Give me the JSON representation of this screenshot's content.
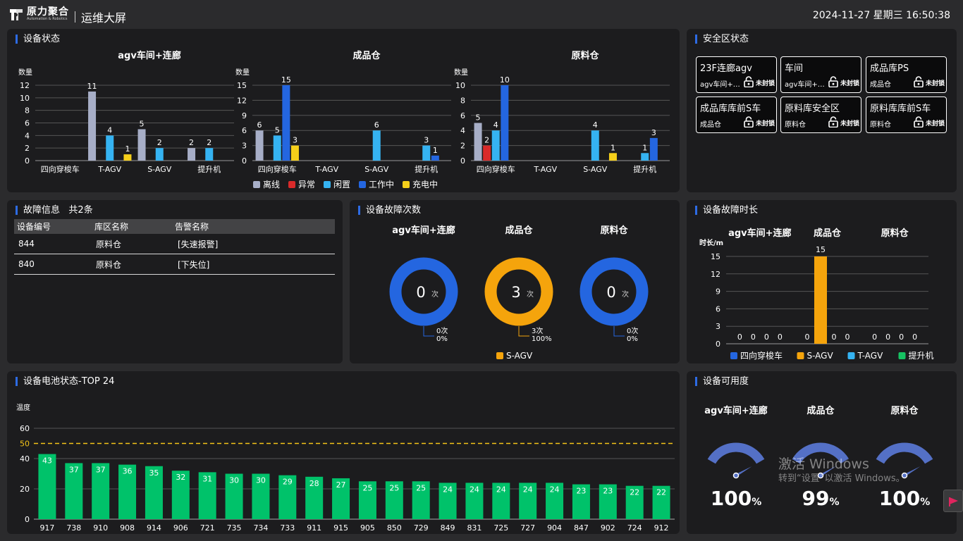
{
  "header": {
    "brand_cn": "原力聚合",
    "brand_en": "Automation & Robotics",
    "title": "运维大屏",
    "datetime": "2024-11-27 星期三 16:50:38"
  },
  "device_status": {
    "title": "设备状态",
    "y_label": "数量",
    "chart_data": [
      {
        "type": "bar",
        "title": "agv车间+连廊",
        "categories": [
          "四向穿梭车",
          "T-AGV",
          "S-AGV",
          "提升机"
        ],
        "ylabel": "数量",
        "ylim": [
          0,
          12
        ],
        "yticks": [
          0,
          2,
          4,
          6,
          8,
          10,
          12
        ],
        "series": [
          {
            "name": "离线",
            "values": [
              null,
              11,
              5,
              2
            ]
          },
          {
            "name": "异常",
            "values": [
              null,
              null,
              null,
              null
            ]
          },
          {
            "name": "闲置",
            "values": [
              null,
              4,
              2,
              2
            ]
          },
          {
            "name": "工作中",
            "values": [
              null,
              null,
              null,
              null
            ]
          },
          {
            "name": "充电中",
            "values": [
              null,
              1,
              null,
              null
            ]
          }
        ]
      },
      {
        "type": "bar",
        "title": "成品仓",
        "categories": [
          "四向穿梭车",
          "T-AGV",
          "S-AGV",
          "提升机"
        ],
        "ylabel": "数量",
        "ylim": [
          0,
          15
        ],
        "yticks": [
          0,
          3,
          6,
          9,
          12,
          15
        ],
        "series": [
          {
            "name": "离线",
            "values": [
              6,
              null,
              null,
              null
            ]
          },
          {
            "name": "异常",
            "values": [
              null,
              null,
              null,
              null
            ]
          },
          {
            "name": "闲置",
            "values": [
              5,
              null,
              6,
              3
            ]
          },
          {
            "name": "工作中",
            "values": [
              15,
              null,
              null,
              1
            ]
          },
          {
            "name": "充电中",
            "values": [
              3,
              null,
              null,
              null
            ]
          }
        ]
      },
      {
        "type": "bar",
        "title": "原料仓",
        "categories": [
          "四向穿梭车",
          "T-AGV",
          "S-AGV",
          "提升机"
        ],
        "ylabel": "数量",
        "ylim": [
          0,
          10
        ],
        "yticks": [
          0,
          2,
          4,
          6,
          8,
          10
        ],
        "series": [
          {
            "name": "离线",
            "values": [
              5,
              null,
              null,
              null
            ]
          },
          {
            "name": "异常",
            "values": [
              2,
              null,
              null,
              null
            ]
          },
          {
            "name": "闲置",
            "values": [
              4,
              null,
              4,
              1
            ]
          },
          {
            "name": "工作中",
            "values": [
              10,
              null,
              null,
              3
            ]
          },
          {
            "name": "充电中",
            "values": [
              null,
              null,
              1,
              null
            ]
          }
        ]
      }
    ],
    "legend": [
      {
        "label": "离线",
        "color": "#a7aec7"
      },
      {
        "label": "异常",
        "color": "#d92a2a"
      },
      {
        "label": "闲置",
        "color": "#35b3f2"
      },
      {
        "label": "工作中",
        "color": "#2466e0"
      },
      {
        "label": "充电中",
        "color": "#f5cf1a"
      }
    ]
  },
  "safety": {
    "title": "安全区状态",
    "zones": [
      {
        "name": "23F连廊agv",
        "area": "agv车间+连廊",
        "status": "未封锁"
      },
      {
        "name": "车间",
        "area": "agv车间+连廊",
        "status": "未封锁"
      },
      {
        "name": "成品库PS",
        "area": "成品仓",
        "status": "未封锁"
      },
      {
        "name": "成品库库前S车",
        "area": "成品仓",
        "status": "未封锁"
      },
      {
        "name": "原料库安全区",
        "area": "原料仓",
        "status": "未封锁"
      },
      {
        "name": "原料库库前S车",
        "area": "原料仓",
        "status": "未封锁"
      }
    ]
  },
  "faults": {
    "title": "故障信息",
    "count_text": "共2条",
    "columns": [
      "设备编号",
      "库区名称",
      "告警名称"
    ],
    "rows": [
      [
        "844",
        "原料仓",
        "[失速报警]"
      ],
      [
        "840",
        "原料仓",
        "[下失位]"
      ]
    ]
  },
  "fault_count": {
    "title": "设备故障次数",
    "unit": "次",
    "chart_data": {
      "type": "pie",
      "categories": [
        "agv车间+连廊",
        "成品仓",
        "原料仓"
      ],
      "values": [
        0,
        3,
        0
      ],
      "labels": [
        {
          "count": "0次",
          "pct": "0%"
        },
        {
          "count": "3次",
          "pct": "100%"
        },
        {
          "count": "0次",
          "pct": "0%"
        }
      ],
      "colors": [
        "#2466e0",
        "#f5a40c",
        "#2466e0"
      ]
    },
    "legend": [
      {
        "label": "S-AGV",
        "color": "#f5a40c"
      }
    ]
  },
  "fault_duration": {
    "title": "设备故障时长",
    "chart_data": {
      "type": "bar",
      "groups": [
        "agv车间+连廊",
        "成品仓",
        "原料仓"
      ],
      "ylabel": "时长/m",
      "ylim": [
        0,
        15
      ],
      "yticks": [
        0,
        3,
        6,
        9,
        12,
        15
      ],
      "series": [
        {
          "name": "四向穿梭车",
          "color": "#2466e0",
          "values": [
            0,
            0,
            0
          ]
        },
        {
          "name": "S-AGV",
          "color": "#f5a40c",
          "values": [
            0,
            15,
            0
          ]
        },
        {
          "name": "T-AGV",
          "color": "#35b3f2",
          "values": [
            0,
            0,
            0
          ]
        },
        {
          "name": "提升机",
          "color": "#16c262",
          "values": [
            0,
            0,
            0
          ]
        }
      ]
    }
  },
  "battery": {
    "title": "设备电池状态-TOP 24",
    "chart_data": {
      "type": "bar",
      "ylabel": "温度",
      "ylim": [
        0,
        60
      ],
      "yticks": [
        0,
        20,
        40,
        60
      ],
      "threshold": 50,
      "color": "#00c26a",
      "threshold_color": "#f5c518",
      "categories": [
        "917",
        "738",
        "910",
        "908",
        "914",
        "906",
        "721",
        "735",
        "734",
        "733",
        "911",
        "915",
        "905",
        "850",
        "729",
        "849",
        "831",
        "725",
        "727",
        "904",
        "847",
        "902",
        "724",
        "912"
      ],
      "values": [
        43,
        37,
        37,
        36,
        35,
        32,
        31,
        30,
        30,
        29,
        28,
        27,
        25,
        25,
        25,
        24,
        24,
        24,
        24,
        24,
        23,
        23,
        22,
        22
      ]
    }
  },
  "availability": {
    "title": "设备可用度",
    "gauges": [
      {
        "name": "agv车间+连廊",
        "value": 100,
        "unit": "%"
      },
      {
        "name": "成品仓",
        "value": 99,
        "unit": "%"
      },
      {
        "name": "原料仓",
        "value": 100,
        "unit": "%"
      }
    ]
  },
  "watermark": {
    "line1": "激活 Windows",
    "line2": "转到“设置”以激活 Windows。"
  }
}
